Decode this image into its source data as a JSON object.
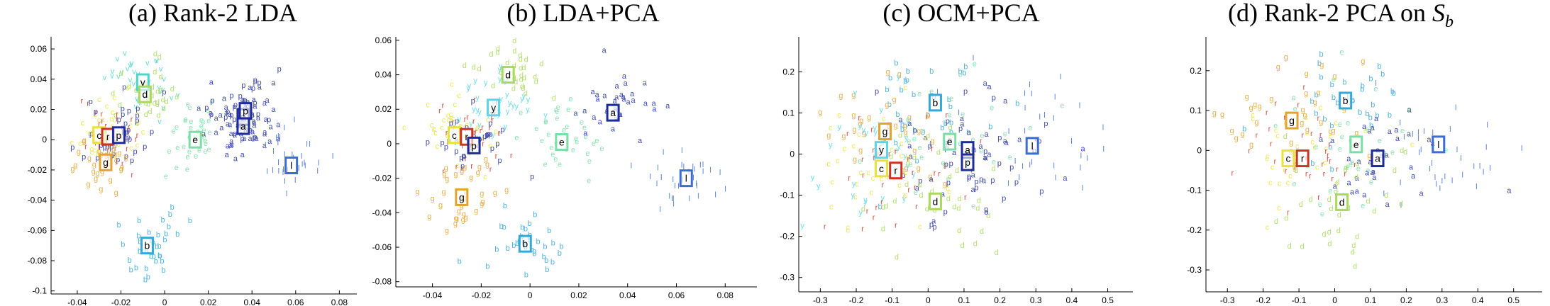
{
  "colors": {
    "a": "#1c2a9c",
    "b": "#35a7d8",
    "c": "#e9e238",
    "d": "#a8d95a",
    "e": "#7ddda9",
    "f": "#1e5ccc",
    "g": "#e2a330",
    "l": "#3d6cd5",
    "p": "#202c9a",
    "r": "#cd3322",
    "s": "#86c6ee",
    "v": "#4cd6c6",
    "y": "#5ad6e6"
  },
  "chart_data": [
    {
      "type": "scatter",
      "title": "(a) Rank-2 LDA",
      "xlim": [
        -0.052,
        0.088
      ],
      "ylim": [
        -0.102,
        0.068
      ],
      "xticks": [
        -0.04,
        -0.02,
        0,
        0.02,
        0.04,
        0.06,
        0.08
      ],
      "xtick_labels": [
        "-0.04",
        "-0.02",
        "0",
        "0.02",
        "0.04",
        "0.06",
        "0.08"
      ],
      "yticks": [
        -0.1,
        -0.08,
        -0.06,
        -0.04,
        -0.02,
        0,
        0.02,
        0.04,
        0.06
      ],
      "ytick_labels": [
        "-0.1",
        "-0.08",
        "-0.06",
        "-0.04",
        "-0.02",
        "0",
        "0.02",
        "0.04",
        "0.06"
      ],
      "centroids": [
        {
          "label": "v",
          "x": -0.01,
          "y": 0.038
        },
        {
          "label": "d",
          "x": -0.009,
          "y": 0.03
        },
        {
          "label": "c",
          "x": -0.03,
          "y": 0.003
        },
        {
          "label": "r",
          "x": -0.026,
          "y": 0.002
        },
        {
          "label": "p",
          "x": -0.021,
          "y": 0.003
        },
        {
          "label": "g",
          "x": -0.027,
          "y": -0.015
        },
        {
          "label": "e",
          "x": 0.014,
          "y": 0.0
        },
        {
          "label": "a",
          "x": 0.036,
          "y": 0.015
        },
        {
          "label": "p",
          "x": 0.037,
          "y": 0.019
        },
        {
          "label": "a",
          "x": 0.036,
          "y": 0.009
        },
        {
          "label": "l",
          "x": 0.058,
          "y": -0.017
        },
        {
          "label": "b",
          "x": -0.008,
          "y": -0.07
        }
      ]
    },
    {
      "type": "scatter",
      "title": "(b) LDA+PCA",
      "xlim": [
        -0.055,
        0.093
      ],
      "ylim": [
        -0.083,
        0.062
      ],
      "xticks": [
        -0.04,
        -0.02,
        0,
        0.02,
        0.04,
        0.06,
        0.08
      ],
      "xtick_labels": [
        "-0.04",
        "-0.02",
        "0",
        "0.02",
        "0.04",
        "0.06",
        "0.08"
      ],
      "yticks": [
        -0.08,
        -0.06,
        -0.04,
        -0.02,
        0,
        0.02,
        0.04
      ],
      "ytick_labels": [
        "-0.08",
        "-0.06",
        "-0.04",
        "-0.02",
        "0",
        "0.02",
        "0.04"
      ],
      "extra_yticks": [
        0.06
      ],
      "extra_ytick_labels": [
        "0.06"
      ],
      "centroids": [
        {
          "label": "d",
          "x": -0.009,
          "y": 0.04
        },
        {
          "label": "y",
          "x": -0.015,
          "y": 0.021
        },
        {
          "label": "c",
          "x": -0.031,
          "y": 0.005
        },
        {
          "label": "r",
          "x": -0.026,
          "y": 0.004
        },
        {
          "label": "p",
          "x": -0.023,
          "y": -0.001
        },
        {
          "label": "e",
          "x": 0.013,
          "y": 0.001
        },
        {
          "label": "a",
          "x": 0.034,
          "y": 0.018
        },
        {
          "label": "l",
          "x": 0.064,
          "y": -0.02
        },
        {
          "label": "g",
          "x": -0.028,
          "y": -0.031
        },
        {
          "label": "b",
          "x": -0.002,
          "y": -0.058
        }
      ]
    },
    {
      "type": "scatter",
      "title": "(c) OCM+PCA",
      "xlim": [
        -0.36,
        0.57
      ],
      "ylim": [
        -0.335,
        0.285
      ],
      "xticks": [
        -0.3,
        -0.2,
        -0.1,
        0,
        0.1,
        0.2,
        0.3,
        0.4,
        0.5
      ],
      "xtick_labels": [
        "-0.3",
        "-0.2",
        "-0.1",
        "0",
        "0.1",
        "0.2",
        "0.3",
        "0.4",
        "0.5"
      ],
      "yticks": [
        -0.3,
        -0.2,
        -0.1,
        0,
        0.1,
        0.2
      ],
      "ytick_labels": [
        "-0.3",
        "-0.2",
        "-0.1",
        "0",
        "0.1",
        "0.2"
      ],
      "centroids": [
        {
          "label": "b",
          "x": 0.02,
          "y": 0.125
        },
        {
          "label": "g",
          "x": -0.12,
          "y": 0.055
        },
        {
          "label": "e",
          "x": 0.06,
          "y": 0.03
        },
        {
          "label": "y",
          "x": -0.13,
          "y": 0.01
        },
        {
          "label": "a",
          "x": 0.11,
          "y": 0.01
        },
        {
          "label": "l",
          "x": 0.29,
          "y": 0.02
        },
        {
          "label": "p",
          "x": 0.11,
          "y": -0.02
        },
        {
          "label": "c",
          "x": -0.13,
          "y": -0.035
        },
        {
          "label": "r",
          "x": -0.09,
          "y": -0.04
        },
        {
          "label": "d",
          "x": 0.02,
          "y": -0.115
        }
      ]
    },
    {
      "type": "scatter",
      "title": "(d) Rank-2 PCA on ",
      "title_var": "S",
      "title_sub": "b",
      "xlim": [
        -0.36,
        0.58
      ],
      "ylim": [
        -0.355,
        0.285
      ],
      "xticks": [
        -0.3,
        -0.2,
        -0.1,
        0,
        0.1,
        0.2,
        0.3,
        0.4,
        0.5
      ],
      "xtick_labels": [
        "-0.3",
        "-0.2",
        "-0.1",
        "0",
        "0.1",
        "0.2",
        "0.3",
        "0.4",
        "0.5"
      ],
      "yticks": [
        -0.3,
        -0.2,
        -0.1,
        0,
        0.1,
        0.2
      ],
      "ytick_labels": [
        "-0.3",
        "-0.2",
        "-0.1",
        "0",
        "0.1",
        "0.2"
      ],
      "centroids": [
        {
          "label": "b",
          "x": 0.03,
          "y": 0.125
        },
        {
          "label": "g",
          "x": -0.12,
          "y": 0.075
        },
        {
          "label": "e",
          "x": 0.06,
          "y": 0.015
        },
        {
          "label": "l",
          "x": 0.29,
          "y": 0.015
        },
        {
          "label": "c",
          "x": -0.13,
          "y": -0.02
        },
        {
          "label": "r",
          "x": -0.09,
          "y": -0.02
        },
        {
          "label": "a",
          "x": 0.12,
          "y": -0.02
        },
        {
          "label": "d",
          "x": 0.02,
          "y": -0.13
        }
      ]
    }
  ]
}
